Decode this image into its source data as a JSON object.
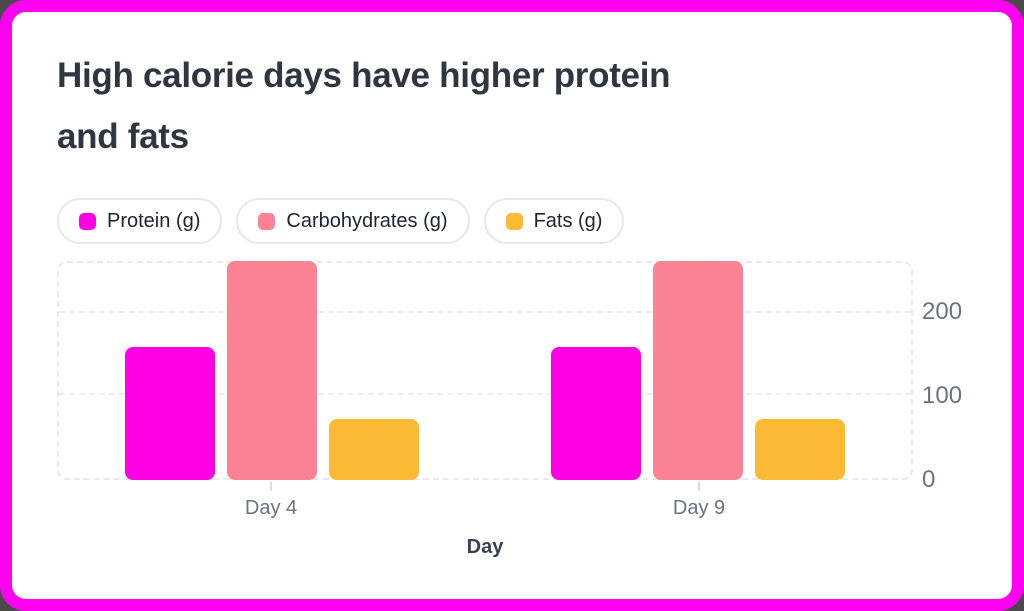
{
  "card": {
    "background": "#ffffff",
    "border_color": "#ff00f0"
  },
  "title": {
    "text": "High calorie days have higher protein and fats",
    "lines": [
      "High calorie days have higher protein",
      "and fats"
    ]
  },
  "chart_data": {
    "type": "bar",
    "title": "High calorie days have higher protein and fats",
    "categories": [
      "Day 4",
      "Day 9"
    ],
    "series": [
      {
        "name": "Protein (g)",
        "color": "#ff00e5",
        "values": [
          158,
          158
        ]
      },
      {
        "name": "Carbohydrates (g)",
        "color": "#fc8394",
        "values": [
          260,
          260
        ]
      },
      {
        "name": "Fats (g)",
        "color": "#fbba33",
        "values": [
          72,
          72
        ]
      }
    ],
    "xlabel": "Day",
    "ylabel": "",
    "ylim": [
      0,
      260
    ],
    "yticks": [
      0,
      100,
      200
    ],
    "grid": "dashed-horizontal",
    "legend_position": "top",
    "y_axis_side": "right"
  }
}
